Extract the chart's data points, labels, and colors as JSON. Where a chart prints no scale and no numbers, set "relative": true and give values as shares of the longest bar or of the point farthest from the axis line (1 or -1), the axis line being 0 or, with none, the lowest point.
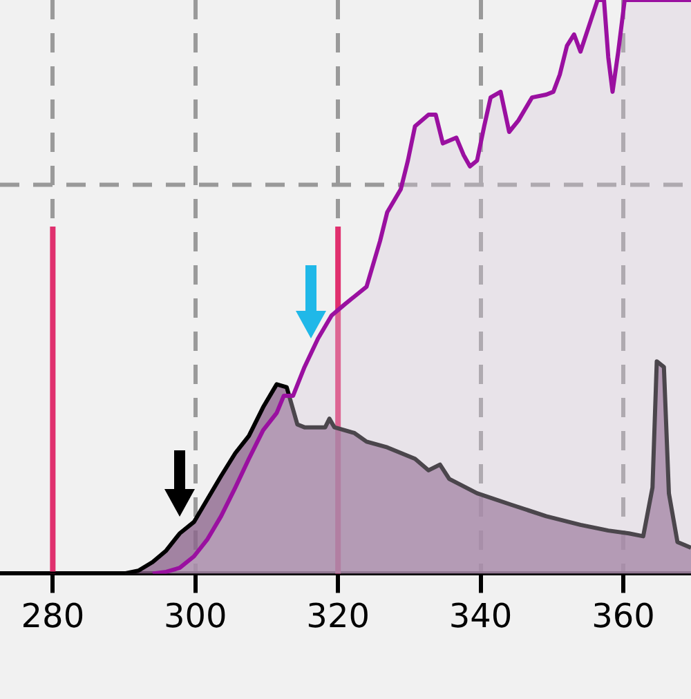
{
  "chart_data": {
    "type": "area",
    "relative": true,
    "xlim": [
      272.6,
      369.5
    ],
    "xticks": [
      280,
      300,
      320,
      340,
      360
    ],
    "grid": "x",
    "series": [
      {
        "color": "#000000",
        "x": [
          272.6,
          290,
          292,
          294,
          295.9,
          297.8,
          299.8,
          301.7,
          303.6,
          305.6,
          307.5,
          309.5,
          311.4,
          312.8,
          314.3,
          315.3,
          318.2,
          318.8,
          319.5,
          322.3,
          324,
          326.9,
          330.8,
          332.7,
          334.3,
          335.6,
          339.5,
          344.3,
          349.2,
          354,
          357.9,
          360.8,
          362.8,
          364.1,
          364.7,
          365.7,
          366.4,
          367.6,
          369.5
        ],
        "values": [
          0,
          0,
          0.005,
          0.02,
          0.04,
          0.07,
          0.09,
          0.13,
          0.17,
          0.21,
          0.24,
          0.29,
          0.33,
          0.325,
          0.26,
          0.255,
          0.255,
          0.27,
          0.255,
          0.245,
          0.23,
          0.22,
          0.2,
          0.18,
          0.19,
          0.165,
          0.14,
          0.12,
          0.1,
          0.085,
          0.075,
          0.07,
          0.065,
          0.15,
          0.37,
          0.36,
          0.14,
          0.055,
          0.045
        ]
      },
      {
        "color": "#9a10a0",
        "x": [
          294,
          295.9,
          297.8,
          299.8,
          301.7,
          303.6,
          305.6,
          307.5,
          309.5,
          311.4,
          312.4,
          313.7,
          315.3,
          317.2,
          319.1,
          321,
          324,
          325.9,
          326.9,
          328.8,
          329.8,
          330.8,
          332.7,
          333.7,
          334.7,
          336.6,
          337.6,
          338.5,
          339.5,
          340.5,
          341.4,
          342.8,
          344,
          345.3,
          347.2,
          349.2,
          350.2,
          351.1,
          352.1,
          353.1,
          354,
          355.6,
          356.4,
          357.3,
          357.9,
          358.5,
          359.3,
          360.2,
          369.5
        ],
        "values": [
          0,
          0.003,
          0.01,
          0.03,
          0.06,
          0.1,
          0.15,
          0.2,
          0.25,
          0.28,
          0.31,
          0.31,
          0.36,
          0.41,
          0.45,
          0.47,
          0.5,
          0.58,
          0.63,
          0.67,
          0.72,
          0.78,
          0.8,
          0.8,
          0.75,
          0.76,
          0.73,
          0.71,
          0.72,
          0.78,
          0.83,
          0.84,
          0.77,
          0.79,
          0.83,
          0.835,
          0.84,
          0.87,
          0.92,
          0.94,
          0.91,
          0.97,
          1,
          1,
          0.9,
          0.84,
          0.91,
          1,
          1
        ]
      }
    ],
    "ref_lines": [
      {
        "axis": "x",
        "value": 280,
        "color": "#e0306e"
      },
      {
        "axis": "x",
        "value": 320,
        "color": "#e0306e"
      },
      {
        "axis": "y",
        "value": 0.678,
        "color": "#999999",
        "line_style": "dashed"
      }
    ]
  }
}
